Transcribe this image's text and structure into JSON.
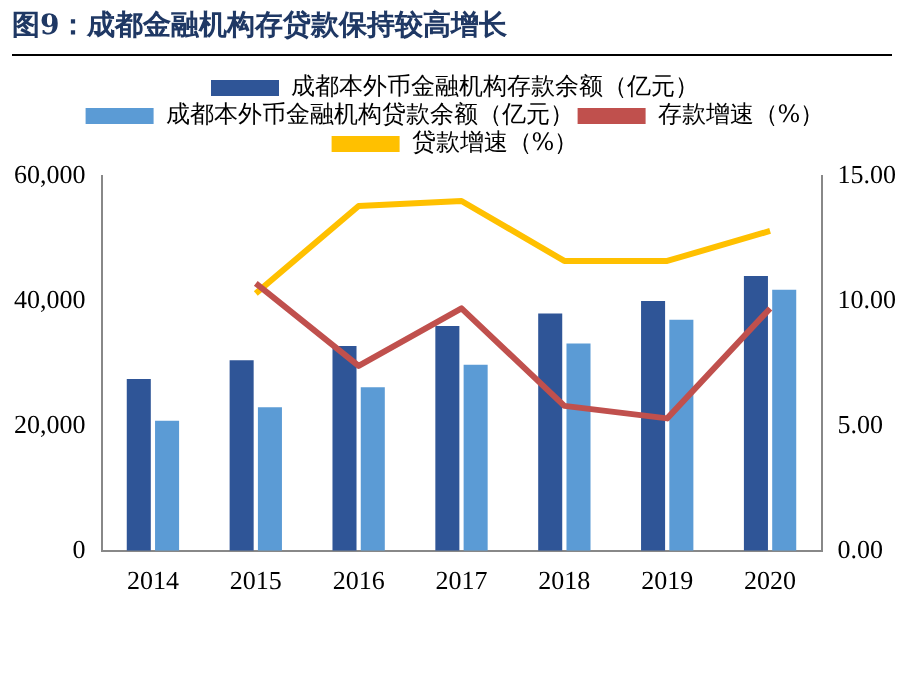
{
  "chart_data": {
    "type": "bar",
    "title": "图9：成都金融机构存贷款保持较高增长",
    "categories": [
      "2014",
      "2015",
      "2016",
      "2017",
      "2018",
      "2019",
      "2020"
    ],
    "series": [
      {
        "name": "成都本外币金融机构存款余额（亿元）",
        "color": "#2f5597",
        "values": [
          27500,
          30500,
          32800,
          36000,
          38000,
          40000,
          44000
        ]
      },
      {
        "name": "成都本外币金融机构贷款余额（亿元）",
        "color": "#5b9bd5",
        "values": [
          20800,
          23000,
          26200,
          29800,
          33200,
          37000,
          41800
        ]
      },
      {
        "name": "存款增速（%）",
        "type": "line",
        "axis": "y2",
        "color": "#c0504d",
        "values": [
          null,
          10.7,
          7.4,
          9.7,
          5.8,
          5.3,
          9.7
        ]
      },
      {
        "name": "贷款增速（%）",
        "type": "line",
        "axis": "y2",
        "color": "#ffc000",
        "values": [
          null,
          10.3,
          13.8,
          14.0,
          11.6,
          11.6,
          12.8
        ]
      }
    ],
    "ylim": [
      0,
      60000
    ],
    "yticks": [
      {
        "value": 0,
        "label": "0"
      },
      {
        "value": 20000,
        "label": "20,000"
      },
      {
        "value": 40000,
        "label": "40,000"
      },
      {
        "value": 60000,
        "label": "60,000"
      }
    ],
    "y2lim": [
      0,
      15
    ],
    "y2ticks": [
      {
        "value": 0,
        "label": "0.00"
      },
      {
        "value": 5,
        "label": "5.00"
      },
      {
        "value": 10,
        "label": "10.00"
      },
      {
        "value": 15,
        "label": "15.00"
      }
    ],
    "grid": false,
    "legend": "top",
    "marker": "none"
  }
}
